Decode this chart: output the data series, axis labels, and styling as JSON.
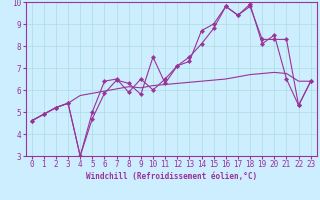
{
  "xlabel": "Windchill (Refroidissement éolien,°C)",
  "background_color": "#cceeff",
  "grid_color": "#aadddd",
  "line_color": "#993399",
  "xlim": [
    -0.5,
    23.5
  ],
  "ylim": [
    3,
    10
  ],
  "x_ticks": [
    0,
    1,
    2,
    3,
    4,
    5,
    6,
    7,
    8,
    9,
    10,
    11,
    12,
    13,
    14,
    15,
    16,
    17,
    18,
    19,
    20,
    21,
    22,
    23
  ],
  "y_ticks": [
    3,
    4,
    5,
    6,
    7,
    8,
    9,
    10
  ],
  "series1_x": [
    0,
    1,
    2,
    3,
    4,
    5,
    6,
    7,
    8,
    9,
    10,
    11,
    12,
    13,
    14,
    15,
    16,
    17,
    18,
    19,
    20,
    21,
    22,
    23
  ],
  "series1_y": [
    4.6,
    4.9,
    5.2,
    5.4,
    5.75,
    5.85,
    5.95,
    6.05,
    6.15,
    6.1,
    6.2,
    6.25,
    6.3,
    6.35,
    6.4,
    6.45,
    6.5,
    6.6,
    6.7,
    6.75,
    6.8,
    6.75,
    6.4,
    6.4
  ],
  "series2_x": [
    0,
    1,
    2,
    3,
    4,
    5,
    6,
    7,
    8,
    9,
    10,
    11,
    12,
    13,
    14,
    15,
    16,
    17,
    18,
    19,
    20,
    21,
    22,
    23
  ],
  "series2_y": [
    4.6,
    4.9,
    5.2,
    5.4,
    3.0,
    4.7,
    5.85,
    6.45,
    6.3,
    5.8,
    7.5,
    6.3,
    7.1,
    7.5,
    8.1,
    8.8,
    9.8,
    9.4,
    9.8,
    8.3,
    8.3,
    8.3,
    5.3,
    6.4
  ],
  "series3_x": [
    0,
    1,
    2,
    3,
    4,
    5,
    6,
    7,
    8,
    9,
    10,
    11,
    12,
    13,
    14,
    15,
    16,
    17,
    18,
    19,
    20,
    21,
    22,
    23
  ],
  "series3_y": [
    4.6,
    4.9,
    5.2,
    5.4,
    3.0,
    5.0,
    6.4,
    6.5,
    5.9,
    6.5,
    6.0,
    6.5,
    7.1,
    7.3,
    8.7,
    9.0,
    9.8,
    9.4,
    9.9,
    8.1,
    8.5,
    6.5,
    5.3,
    6.4
  ],
  "tick_fontsize": 5.5,
  "xlabel_fontsize": 5.5,
  "linewidth": 0.8,
  "markersize": 2.2
}
